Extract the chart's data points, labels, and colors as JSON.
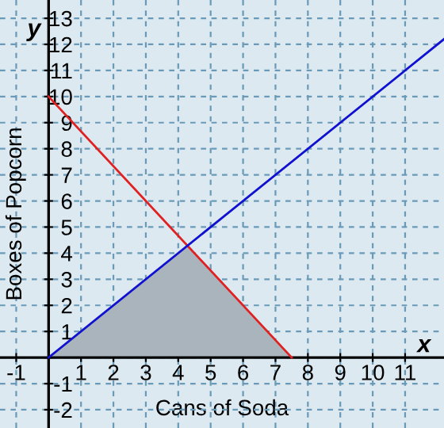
{
  "chart_data": {
    "type": "line",
    "xlabel": "Cans of Soda",
    "ylabel": "Boxes of Popcorn",
    "annotations": [
      "x",
      "y"
    ],
    "series": [
      {
        "type": "area",
        "color": "#a9b4bc",
        "x": [
          0,
          4.29,
          7.5
        ],
        "values": [
          0,
          4.29,
          0
        ]
      },
      {
        "color": "#e02020",
        "x": [
          0,
          7.5
        ],
        "values": [
          10,
          0
        ]
      },
      {
        "color": "#1010d0",
        "x": [
          0,
          12.2
        ],
        "values": [
          0,
          12.2
        ]
      }
    ],
    "xlim": [
      -1.5,
      12.2
    ],
    "ylim": [
      -2.7,
      13.7
    ],
    "xticks": [
      -1,
      {
        "value": 0,
        "label": null
      },
      1,
      2,
      3,
      4,
      5,
      6,
      7,
      8,
      9,
      10,
      11
    ],
    "yticks": [
      -2,
      -1,
      {
        "value": 0,
        "label": null
      },
      1,
      2,
      3,
      4,
      5,
      6,
      7,
      8,
      9,
      10,
      11,
      12,
      13
    ],
    "grid": true
  }
}
